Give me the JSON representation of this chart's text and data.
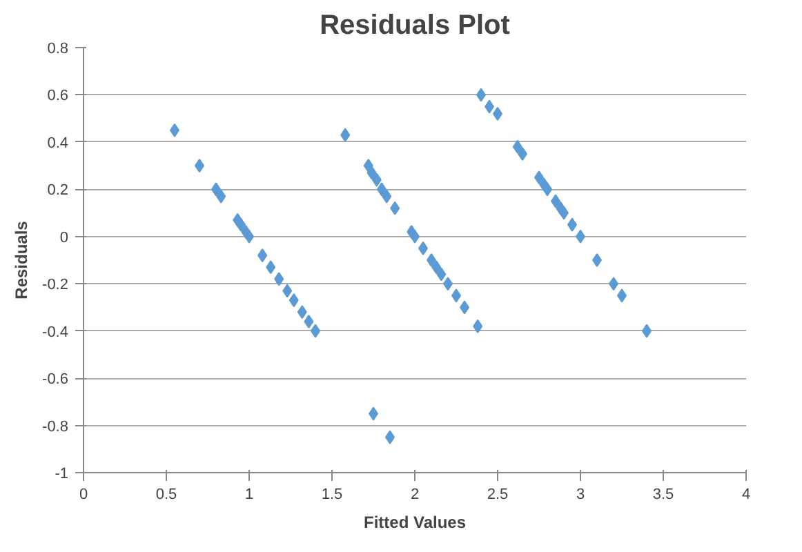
{
  "chart_data": {
    "type": "scatter",
    "title": "Residuals Plot",
    "xlabel": "Fitted Values",
    "ylabel": "Residuals",
    "x": [
      0.55,
      0.7,
      0.8,
      0.83,
      0.93,
      0.95,
      0.98,
      1.0,
      1.08,
      1.13,
      1.18,
      1.23,
      1.27,
      1.32,
      1.36,
      1.4,
      1.58,
      1.72,
      1.74,
      1.77,
      1.8,
      1.83,
      1.88,
      1.98,
      2.0,
      2.05,
      2.1,
      2.13,
      2.16,
      2.2,
      2.25,
      2.3,
      2.38,
      1.75,
      1.85,
      2.4,
      2.45,
      2.5,
      2.62,
      2.65,
      2.75,
      2.78,
      2.8,
      2.85,
      2.88,
      2.9,
      2.95,
      3.0,
      3.1,
      3.2,
      3.25,
      3.4
    ],
    "values": [
      0.45,
      0.3,
      0.2,
      0.17,
      0.07,
      0.05,
      0.02,
      0.0,
      -0.08,
      -0.13,
      -0.18,
      -0.23,
      -0.27,
      -0.32,
      -0.36,
      -0.4,
      0.43,
      0.3,
      0.27,
      0.24,
      0.2,
      0.17,
      0.12,
      0.02,
      0.0,
      -0.05,
      -0.1,
      -0.13,
      -0.16,
      -0.2,
      -0.25,
      -0.3,
      -0.38,
      -0.75,
      -0.85,
      0.6,
      0.55,
      0.52,
      0.38,
      0.35,
      0.25,
      0.22,
      0.2,
      0.15,
      0.12,
      0.1,
      0.05,
      0.0,
      -0.1,
      -0.2,
      -0.25,
      -0.4
    ],
    "color": "#5b9bd5",
    "marker": "diamond",
    "grid": "y",
    "xlim": [
      0,
      4
    ],
    "xticks": [
      0,
      0.5,
      1,
      1.5,
      2,
      2.5,
      3,
      3.5,
      4
    ],
    "ylim": [
      -1,
      0.8
    ],
    "yticks": [
      -1,
      -0.8,
      -0.6,
      -0.4,
      -0.2,
      0,
      0.2,
      0.4,
      0.6,
      0.8
    ]
  }
}
